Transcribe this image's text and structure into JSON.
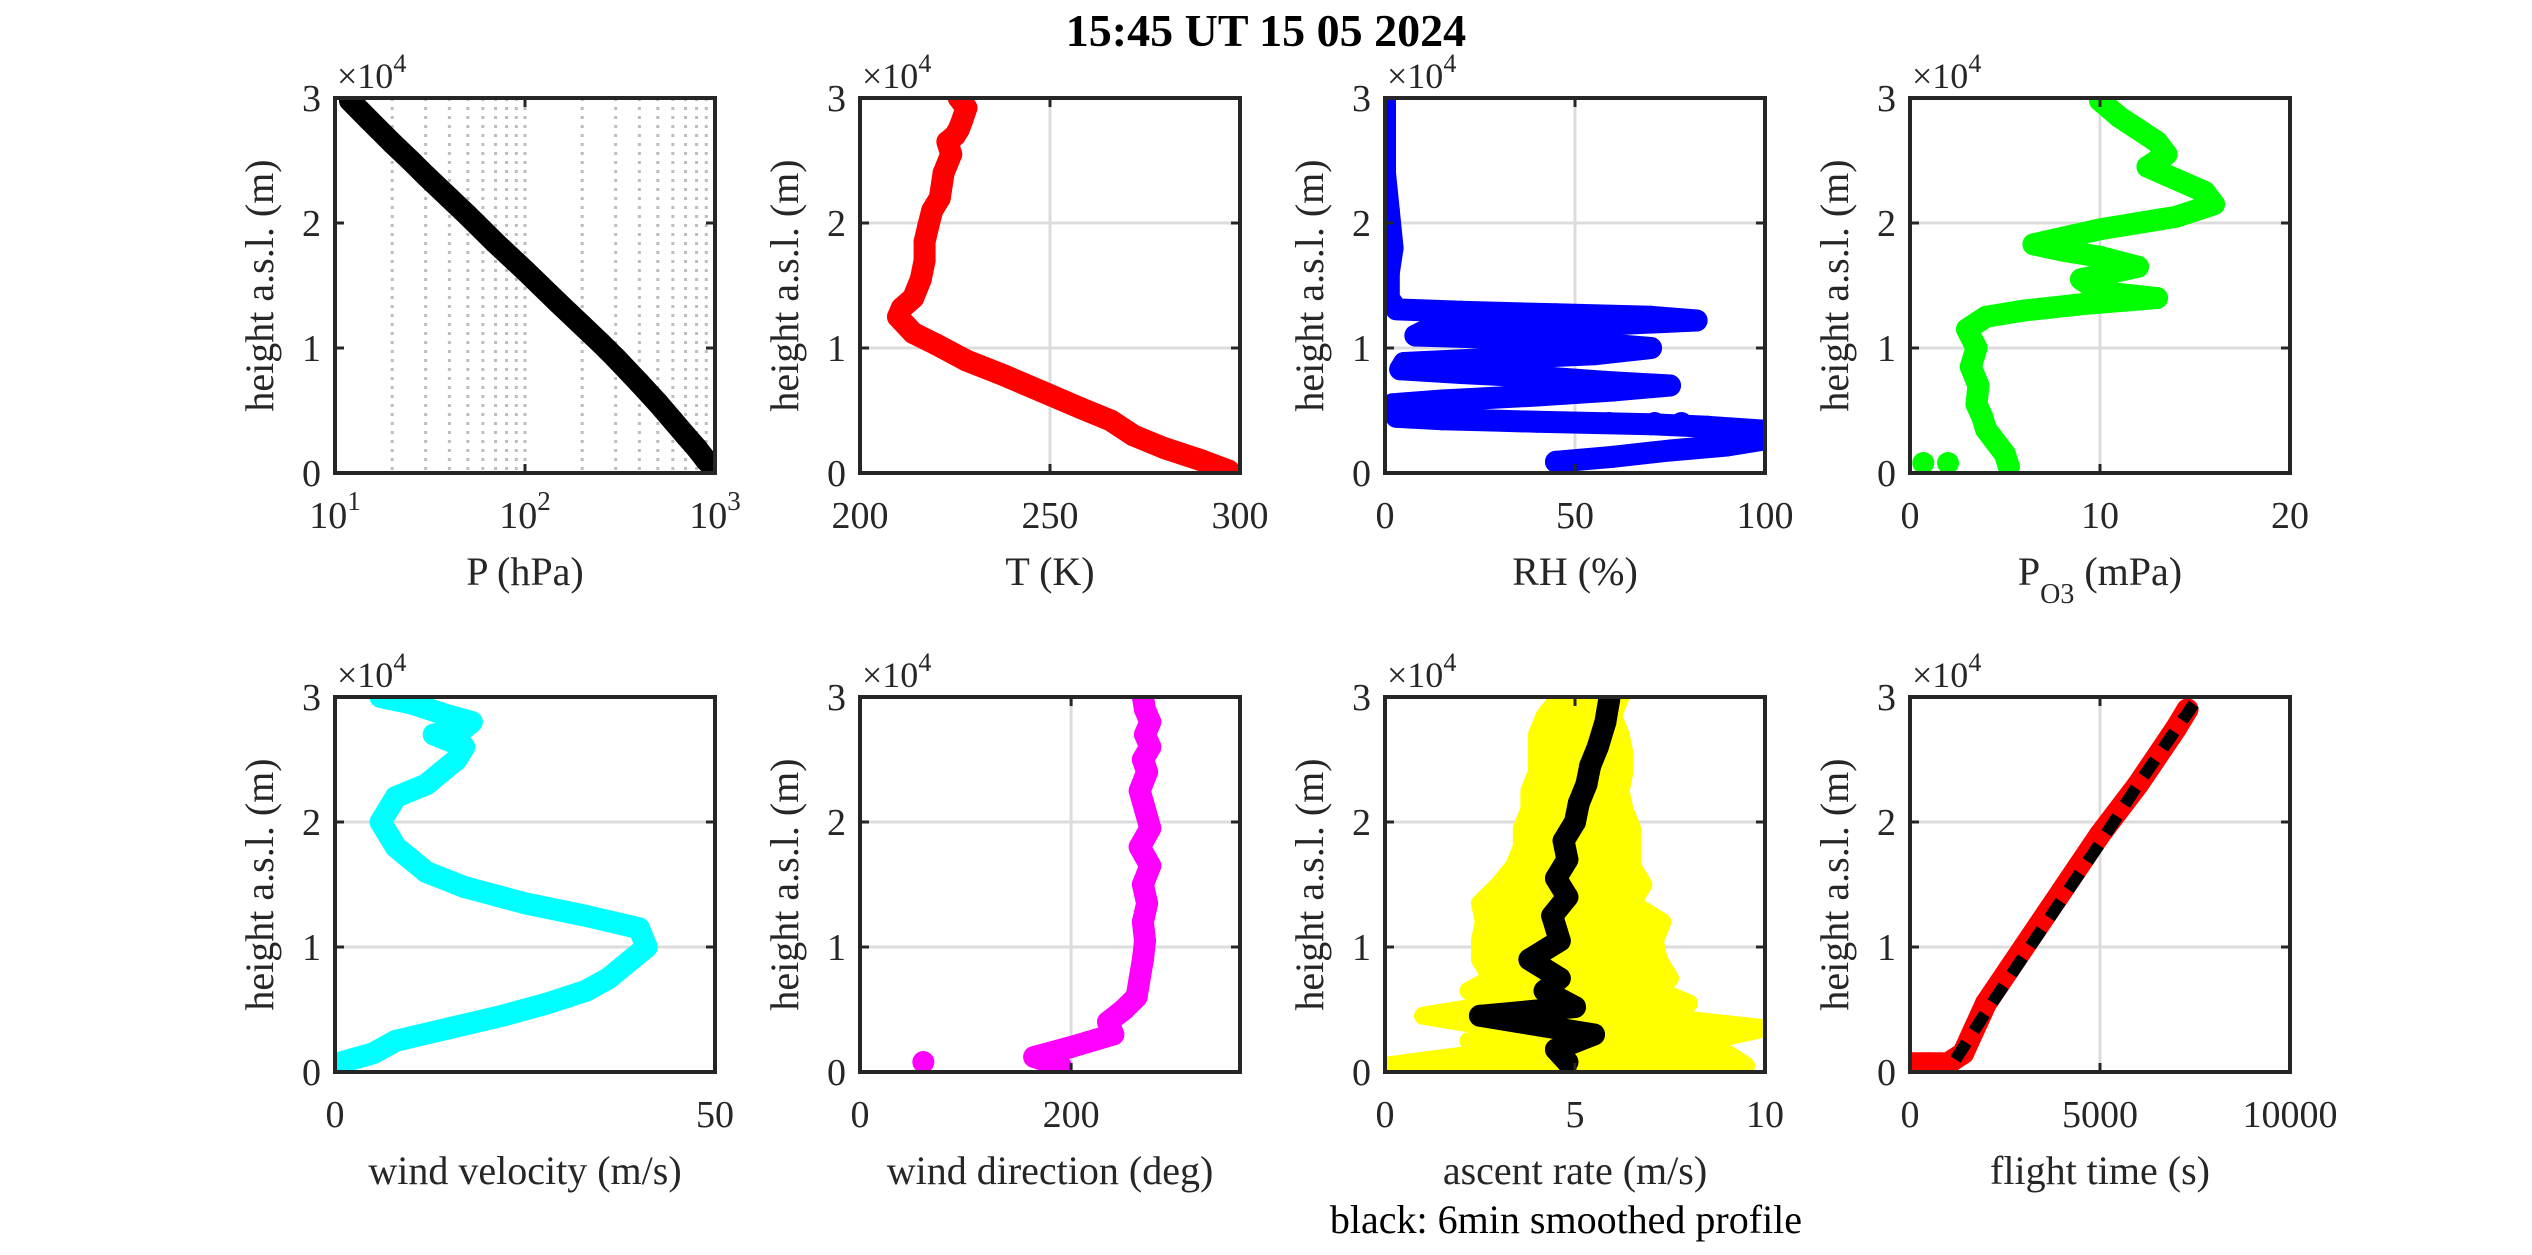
{
  "figure": {
    "title": "15:45 UT  15 05 2024",
    "footnote": "black: 6min smoothed profile"
  },
  "chart_data": [
    {
      "type": "scatter",
      "id": "pressure",
      "xlabel": "P (hPa)",
      "ylabel": "height a.s.l. (m)",
      "y_exponent": "4",
      "xscale": "log",
      "xlim": [
        10,
        1000
      ],
      "ylim": [
        0,
        30000
      ],
      "x_ticks": [
        10,
        100,
        1000
      ],
      "x_tick_labels": [
        {
          "base": "10",
          "exp": "1"
        },
        {
          "base": "10",
          "exp": "2"
        },
        {
          "base": "10",
          "exp": "3"
        }
      ],
      "y_ticks": [
        0,
        10000,
        20000,
        30000
      ],
      "y_tick_labels": [
        "0",
        "1",
        "2",
        "3"
      ],
      "grid": "log-minor-dotted",
      "series": [
        {
          "color": "#000000",
          "style": "thick-line",
          "x": [
            1000,
            900,
            800,
            700,
            600,
            500,
            400,
            300,
            250,
            200,
            150,
            100,
            70,
            50,
            40,
            30,
            25,
            20,
            15,
            12
          ],
          "y": [
            300,
            1000,
            2000,
            3000,
            4200,
            5600,
            7200,
            9200,
            10400,
            11800,
            13600,
            16200,
            18400,
            20600,
            22000,
            23800,
            25000,
            26400,
            28300,
            29800
          ]
        }
      ]
    },
    {
      "type": "scatter",
      "id": "temperature",
      "xlabel": "T (K)",
      "ylabel": "height a.s.l. (m)",
      "y_exponent": "4",
      "xlim": [
        200,
        300
      ],
      "ylim": [
        0,
        30000
      ],
      "x_ticks": [
        200,
        250,
        300
      ],
      "x_tick_labels": [
        "200",
        "250",
        "300"
      ],
      "y_ticks": [
        0,
        10000,
        20000,
        30000
      ],
      "y_tick_labels": [
        "0",
        "1",
        "2",
        "3"
      ],
      "grid": "on",
      "series": [
        {
          "color": "#ff0000",
          "style": "thick-line",
          "x": [
            297,
            290,
            280,
            272,
            266,
            258,
            248,
            238,
            228,
            220,
            214,
            210,
            211,
            214,
            216,
            217,
            217,
            218,
            219,
            221,
            222,
            224,
            223,
            225,
            226,
            227,
            228,
            226
          ],
          "y": [
            200,
            1000,
            2000,
            3000,
            4200,
            5200,
            6500,
            7800,
            9000,
            10300,
            11200,
            12500,
            13200,
            14000,
            15500,
            17000,
            18500,
            19800,
            21000,
            22000,
            24000,
            25500,
            26500,
            27000,
            27500,
            28300,
            29200,
            30000
          ]
        }
      ]
    },
    {
      "type": "scatter",
      "id": "relative-humidity",
      "xlabel": "RH (%)",
      "ylabel": "height a.s.l. (m)",
      "y_exponent": "4",
      "xlim": [
        0,
        100
      ],
      "ylim": [
        0,
        30000
      ],
      "x_ticks": [
        0,
        50,
        100
      ],
      "x_tick_labels": [
        "0",
        "50",
        "100"
      ],
      "y_ticks": [
        0,
        10000,
        20000,
        30000
      ],
      "y_tick_labels": [
        "0",
        "1",
        "2",
        "3"
      ],
      "grid": "on",
      "series": [
        {
          "color": "#0000ff",
          "style": "thick-line",
          "x": [
            45,
            60,
            75,
            90,
            100,
            99,
            85,
            70,
            55,
            40,
            28,
            15,
            3,
            2,
            15,
            40,
            60,
            75,
            58,
            40,
            20,
            4,
            5,
            25,
            55,
            70,
            50,
            30,
            8,
            10,
            35,
            60,
            82,
            70,
            45,
            20,
            3,
            1,
            1,
            2,
            1,
            0,
            0,
            0
          ],
          "y": [
            900,
            1300,
            1800,
            2200,
            2700,
            3400,
            3700,
            3900,
            4000,
            4100,
            4200,
            4300,
            4500,
            5500,
            5800,
            6200,
            6600,
            7000,
            7300,
            7700,
            8000,
            8300,
            8800,
            9100,
            9500,
            10000,
            10500,
            10800,
            11000,
            11300,
            11600,
            11900,
            12200,
            12500,
            12700,
            12900,
            13100,
            14000,
            16000,
            18000,
            21000,
            24000,
            27000,
            30000
          ]
        },
        {
          "color": "#0000ff",
          "style": "points",
          "x": [
            59,
            71,
            78
          ],
          "y": [
            4000,
            4000,
            4000
          ]
        }
      ]
    },
    {
      "type": "scatter",
      "id": "ozone",
      "xlabel": "P",
      "xlabel_sub": "O3",
      "xlabel_rest": " (mPa)",
      "ylabel": "height a.s.l. (m)",
      "y_exponent": "4",
      "xlim": [
        0,
        20
      ],
      "ylim": [
        0,
        30000
      ],
      "x_ticks": [
        0,
        10,
        20
      ],
      "x_tick_labels": [
        "0",
        "10",
        "20"
      ],
      "y_ticks": [
        0,
        10000,
        20000,
        30000
      ],
      "y_tick_labels": [
        "0",
        "1",
        "2",
        "3"
      ],
      "grid": "on",
      "series": [
        {
          "color": "#00ff00",
          "style": "thick-line",
          "x": [
            5.2,
            5,
            4.5,
            4,
            3.8,
            3.5,
            3.6,
            3.2,
            3.5,
            3,
            4,
            6,
            9,
            13,
            10,
            9,
            12,
            10,
            8,
            6.5,
            10,
            14,
            16,
            15.5,
            14,
            12.5,
            13.5,
            13,
            12,
            11,
            10
          ],
          "y": [
            500,
            1500,
            2500,
            3500,
            4500,
            5500,
            7000,
            8500,
            10000,
            11500,
            12500,
            13000,
            13500,
            14000,
            14500,
            15500,
            16500,
            17300,
            17800,
            18300,
            19500,
            20500,
            21500,
            22500,
            23500,
            24500,
            25500,
            26500,
            27500,
            28500,
            29800
          ]
        },
        {
          "color": "#00ff00",
          "style": "points",
          "x": [
            0.7,
            2
          ],
          "y": [
            800,
            800
          ]
        }
      ]
    },
    {
      "type": "scatter",
      "id": "wind-velocity",
      "xlabel": "wind velocity (m/s)",
      "ylabel": "height a.s.l. (m)",
      "y_exponent": "4",
      "xlim": [
        0,
        50
      ],
      "ylim": [
        0,
        30000
      ],
      "x_ticks": [
        0,
        50
      ],
      "x_tick_labels": [
        "0",
        "50"
      ],
      "y_ticks": [
        0,
        10000,
        20000,
        30000
      ],
      "y_tick_labels": [
        "0",
        "1",
        "2",
        "3"
      ],
      "grid": "on",
      "series": [
        {
          "color": "#00ffff",
          "style": "thick-line",
          "x": [
            1,
            5,
            8,
            15,
            22,
            28,
            33,
            36,
            38,
            41,
            40,
            33,
            25,
            17,
            12,
            10,
            8,
            7,
            6,
            7,
            8,
            12,
            14,
            16,
            17,
            13,
            17,
            18,
            15,
            10,
            6
          ],
          "y": [
            800,
            1500,
            2500,
            3500,
            4500,
            5500,
            6500,
            7500,
            8500,
            10000,
            11500,
            12500,
            13500,
            14800,
            16000,
            17000,
            18000,
            19000,
            20000,
            21000,
            22000,
            23000,
            24000,
            25000,
            26000,
            27000,
            27500,
            28000,
            28500,
            29500,
            30000
          ]
        }
      ]
    },
    {
      "type": "scatter",
      "id": "wind-direction",
      "xlabel": "wind direction (deg)",
      "ylabel": "height a.s.l. (m)",
      "y_exponent": "4",
      "xlim": [
        0,
        360
      ],
      "ylim": [
        0,
        30000
      ],
      "x_ticks": [
        0,
        200
      ],
      "x_tick_labels": [
        "0",
        "200"
      ],
      "y_ticks": [
        0,
        10000,
        20000,
        30000
      ],
      "y_tick_labels": [
        "0",
        "1",
        "2",
        "3"
      ],
      "grid": "on",
      "series": [
        {
          "color": "#ff00ff",
          "style": "thick-line",
          "x": [
            190,
            165,
            200,
            240,
            235,
            250,
            262,
            265,
            268,
            270,
            268,
            272,
            268,
            275,
            265,
            275,
            270,
            265,
            272,
            268,
            275,
            270,
            275,
            270,
            268
          ],
          "y": [
            500,
            1200,
            2000,
            3000,
            4000,
            5000,
            6000,
            7500,
            9000,
            10500,
            12000,
            13500,
            15000,
            16500,
            18000,
            19500,
            21000,
            22500,
            24000,
            25000,
            26000,
            27000,
            28000,
            29000,
            30000
          ]
        },
        {
          "color": "#ff00ff",
          "style": "points",
          "x": [
            60
          ],
          "y": [
            800
          ]
        }
      ]
    },
    {
      "type": "scatter",
      "id": "ascent-rate",
      "xlabel": "ascent rate (m/s)",
      "ylabel": "height a.s.l. (m)",
      "y_exponent": "4",
      "xlim": [
        0,
        10
      ],
      "ylim": [
        0,
        30000
      ],
      "x_ticks": [
        0,
        5,
        10
      ],
      "x_tick_labels": [
        "0",
        "5",
        "10"
      ],
      "y_ticks": [
        0,
        10000,
        20000,
        30000
      ],
      "y_tick_labels": [
        "0",
        "1",
        "2",
        "3"
      ],
      "grid": "on",
      "series": [
        {
          "color": "#ffff00",
          "style": "band",
          "y": [
            500,
            1500,
            2500,
            3500,
            4500,
            5500,
            6500,
            7500,
            9000,
            10500,
            12000,
            13500,
            15000,
            16500,
            18000,
            19500,
            21000,
            22500,
            24000,
            25500,
            27000,
            28500,
            30000
          ],
          "x_low": [
            0,
            2.5,
            2.2,
            3,
            1,
            3,
            2.2,
            2.8,
            2.5,
            2.5,
            2.6,
            2.5,
            3,
            3.4,
            3.6,
            3.6,
            3.8,
            3.8,
            4,
            4,
            4,
            4.2,
            4.6
          ],
          "x_high": [
            9.5,
            9,
            8.5,
            10,
            7,
            8,
            7.2,
            7.5,
            7.2,
            7.1,
            7.3,
            6.5,
            6.8,
            6.5,
            6.5,
            6.5,
            6.3,
            6.2,
            6.3,
            6.3,
            6.2,
            6,
            6.2
          ]
        },
        {
          "color": "#000000",
          "style": "thick-line",
          "x": [
            4.8,
            4.5,
            5.5,
            3.5,
            2.5,
            5,
            4.2,
            4.6,
            3.8,
            4.6,
            4.4,
            4.8,
            4.5,
            4.8,
            4.7,
            5,
            5.1,
            5.3,
            5.4,
            5.6,
            5.8,
            5.9
          ],
          "y": [
            800,
            1800,
            3000,
            4000,
            4500,
            5200,
            6500,
            7500,
            9000,
            10500,
            12500,
            14000,
            15500,
            17000,
            18500,
            20000,
            21500,
            23000,
            24500,
            26000,
            28000,
            29800
          ]
        }
      ]
    },
    {
      "type": "line",
      "id": "flight-time",
      "xlabel": "flight time (s)",
      "ylabel": "height a.s.l. (m)",
      "y_exponent": "4",
      "xlim": [
        0,
        10000
      ],
      "ylim": [
        0,
        30000
      ],
      "x_ticks": [
        0,
        5000,
        10000
      ],
      "x_tick_labels": [
        "0",
        "5000",
        "10000"
      ],
      "y_ticks": [
        0,
        10000,
        20000,
        30000
      ],
      "y_tick_labels": [
        "0",
        "1",
        "2",
        "3"
      ],
      "grid": "on",
      "series": [
        {
          "color": "#ff0000",
          "style": "thick-line",
          "x": [
            0,
            500,
            1000,
            1400,
            2000,
            3000,
            4000,
            5000,
            6000,
            7000,
            7300
          ],
          "y": [
            700,
            700,
            700,
            1500,
            5500,
            10000,
            14500,
            19000,
            23000,
            27500,
            29000
          ]
        },
        {
          "color": "#000000",
          "style": "dashed",
          "x": [
            1200,
            2000,
            3000,
            4000,
            5000,
            6000,
            7000,
            7600
          ],
          "y": [
            1000,
            4800,
            9300,
            13800,
            18300,
            23000,
            27400,
            30000
          ]
        }
      ]
    }
  ]
}
